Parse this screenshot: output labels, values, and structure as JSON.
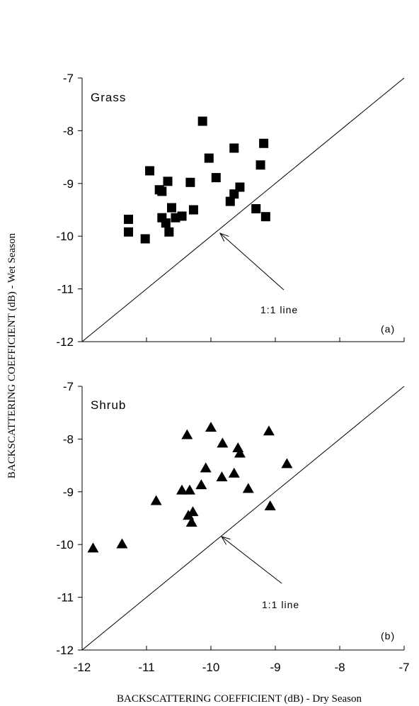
{
  "chart_data": [
    {
      "type": "scatter",
      "title": "Grass",
      "panel_label": "(a)",
      "annotation": "1:1 line",
      "marker": "square",
      "xlim": [
        -12,
        -7
      ],
      "ylim": [
        -12,
        -7
      ],
      "x_ticks": [
        -12,
        -11,
        -10,
        -9,
        -8,
        -7
      ],
      "y_ticks": [
        -7,
        -8,
        -9,
        -10,
        -11,
        -12
      ],
      "y_tick_labels": [
        "-7",
        "-8",
        "-9",
        "-10",
        "-11",
        "-12"
      ],
      "reference_line": [
        [
          -12,
          -12
        ],
        [
          -7,
          -7
        ]
      ],
      "points": [
        {
          "x": -11.28,
          "y": -9.68
        },
        {
          "x": -11.28,
          "y": -9.92
        },
        {
          "x": -11.02,
          "y": -10.05
        },
        {
          "x": -10.95,
          "y": -8.76
        },
        {
          "x": -10.8,
          "y": -9.12
        },
        {
          "x": -10.76,
          "y": -9.15
        },
        {
          "x": -10.76,
          "y": -9.65
        },
        {
          "x": -10.7,
          "y": -9.75
        },
        {
          "x": -10.67,
          "y": -8.96
        },
        {
          "x": -10.65,
          "y": -9.92
        },
        {
          "x": -10.61,
          "y": -9.46
        },
        {
          "x": -10.55,
          "y": -9.65
        },
        {
          "x": -10.45,
          "y": -9.62
        },
        {
          "x": -10.32,
          "y": -8.98
        },
        {
          "x": -10.27,
          "y": -9.5
        },
        {
          "x": -10.13,
          "y": -7.82
        },
        {
          "x": -10.03,
          "y": -8.52
        },
        {
          "x": -9.92,
          "y": -8.89
        },
        {
          "x": -9.7,
          "y": -9.34
        },
        {
          "x": -9.64,
          "y": -8.33
        },
        {
          "x": -9.64,
          "y": -9.2
        },
        {
          "x": -9.55,
          "y": -9.07
        },
        {
          "x": -9.3,
          "y": -9.48
        },
        {
          "x": -9.23,
          "y": -8.65
        },
        {
          "x": -9.18,
          "y": -8.24
        },
        {
          "x": -9.15,
          "y": -9.63
        }
      ]
    },
    {
      "type": "scatter",
      "title": "Shrub",
      "panel_label": "(b)",
      "annotation": "1:1 line",
      "marker": "triangle",
      "xlim": [
        -12,
        -7
      ],
      "ylim": [
        -12,
        -7
      ],
      "x_ticks": [
        -12,
        -11,
        -10,
        -9,
        -8,
        -7
      ],
      "x_tick_labels": [
        "-12",
        "-11",
        "-10",
        "-9",
        "-8",
        "-7"
      ],
      "y_ticks": [
        -7,
        -8,
        -9,
        -10,
        -11,
        -12
      ],
      "y_tick_labels": [
        "-7",
        "-8",
        "-9",
        "-10",
        "-11",
        "-12"
      ],
      "reference_line": [
        [
          -12,
          -12
        ],
        [
          -7,
          -7
        ]
      ],
      "points": [
        {
          "x": -11.83,
          "y": -10.07
        },
        {
          "x": -11.38,
          "y": -9.99
        },
        {
          "x": -10.85,
          "y": -9.17
        },
        {
          "x": -10.45,
          "y": -8.97
        },
        {
          "x": -10.37,
          "y": -7.92
        },
        {
          "x": -10.35,
          "y": -9.45
        },
        {
          "x": -10.33,
          "y": -8.97
        },
        {
          "x": -10.3,
          "y": -9.58
        },
        {
          "x": -10.28,
          "y": -9.38
        },
        {
          "x": -10.15,
          "y": -8.87
        },
        {
          "x": -10.08,
          "y": -8.55
        },
        {
          "x": -10.0,
          "y": -7.78
        },
        {
          "x": -9.83,
          "y": -8.72
        },
        {
          "x": -9.82,
          "y": -8.08
        },
        {
          "x": -9.64,
          "y": -8.65
        },
        {
          "x": -9.58,
          "y": -8.17
        },
        {
          "x": -9.55,
          "y": -8.27
        },
        {
          "x": -9.42,
          "y": -8.94
        },
        {
          "x": -9.1,
          "y": -7.85
        },
        {
          "x": -9.08,
          "y": -9.27
        },
        {
          "x": -8.82,
          "y": -8.47
        }
      ]
    }
  ],
  "axes": {
    "ylabel": "BACKSCATTERING COEFFICIENT (dB)  - Wet Season",
    "xlabel": "BACKSCATTERING COEFFICIENT (dB)  - Dry Season"
  }
}
